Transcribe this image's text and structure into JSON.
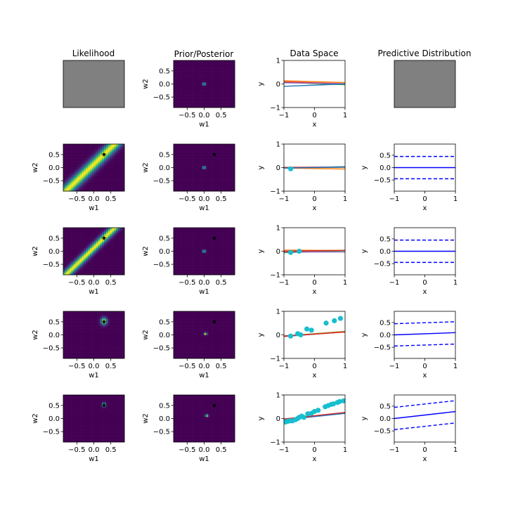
{
  "columns": [
    "Likelihood",
    "Prior/Posterior",
    "Data Space",
    "Predictive Distribution"
  ],
  "colors": {
    "viridis_low": "#440154",
    "viridis_bg": "#481a6c",
    "viridis_high": "#fde725",
    "empty_panel": "#808080",
    "data_point": "#17becf",
    "predictive_line": "#0000ff",
    "true_param_marker": "#000000"
  },
  "axes": {
    "w1_label": "w1",
    "w2_label": "w2",
    "x_label": "x",
    "y_label": "y",
    "weight_ticks": [
      "−0.5",
      "0.0",
      "0.5"
    ],
    "weight_tick_values": [
      -0.5,
      0.0,
      0.5
    ],
    "data_x_ticks": [
      "−1",
      "0",
      "1"
    ],
    "data_x_tick_values": [
      -1,
      0,
      1
    ],
    "data_y_ticks": [
      "−1",
      "0",
      "1"
    ],
    "data_y_tick_values": [
      -1,
      0,
      1
    ],
    "pred_x_ticks": [
      "−1",
      "0",
      "1"
    ],
    "pred_x_tick_values": [
      -1,
      0,
      1
    ],
    "pred_y_ticks": [
      "−0.5",
      "0.0",
      "0.5"
    ],
    "pred_y_tick_values": [
      -0.5,
      0.0,
      0.5
    ]
  },
  "chart_data": {
    "type": "grid",
    "true_params": {
      "w1": 0.3,
      "w2": 0.5
    },
    "weight_range": [
      -0.9,
      0.9
    ],
    "data_xlim": [
      -1,
      1
    ],
    "data_ylim": [
      -1,
      1
    ],
    "pred_xlim": [
      -1,
      1
    ],
    "pred_ylim": [
      -0.95,
      0.95
    ],
    "rows": [
      {
        "n_points": 0,
        "likelihood": null,
        "posterior": {
          "mean": [
            0.0,
            0.0
          ],
          "sd": [
            0.03,
            0.03
          ],
          "rho": 0
        },
        "data_points": [],
        "sample_lines": [
          {
            "color": "#ff7f0e",
            "w1": 0.1,
            "w2": -0.04
          },
          {
            "color": "#2ca02c",
            "w1": 0.02,
            "w2": -0.05
          },
          {
            "color": "#d62728",
            "w1": 0.05,
            "w2": -0.04
          },
          {
            "color": "#9467bd",
            "w1": 0.03,
            "w2": -0.02
          },
          {
            "color": "#1f77b4",
            "w1": -0.05,
            "w2": 0.05
          }
        ],
        "predictive": null
      },
      {
        "n_points": 1,
        "likelihood": {
          "type": "band",
          "a": 0.3,
          "b": 0.5,
          "width": 0.18
        },
        "posterior": {
          "mean": [
            0.0,
            0.0
          ],
          "sd": [
            0.03,
            0.03
          ],
          "rho": 0
        },
        "data_points": [
          [
            -0.78,
            -0.05
          ]
        ],
        "sample_lines": [
          {
            "color": "#ff7f0e",
            "w1": -0.04,
            "w2": -0.02
          },
          {
            "color": "#2ca02c",
            "w1": 0.0,
            "w2": 0.01
          },
          {
            "color": "#d62728",
            "w1": 0.02,
            "w2": 0.01
          },
          {
            "color": "#9467bd",
            "w1": 0.0,
            "w2": 0.02
          },
          {
            "color": "#1f77b4",
            "w1": 0.01,
            "w2": 0.03
          }
        ],
        "predictive": {
          "mean": [
            0.0,
            0.0
          ],
          "upper": [
            0.45,
            0.45
          ],
          "lower": [
            -0.45,
            -0.45
          ]
        }
      },
      {
        "n_points": 2,
        "likelihood": {
          "type": "band",
          "a": 0.3,
          "b": 0.5,
          "width": 0.13
        },
        "posterior": {
          "mean": [
            0.0,
            0.0
          ],
          "sd": [
            0.03,
            0.03
          ],
          "rho": 0
        },
        "data_points": [
          [
            -0.78,
            -0.05
          ],
          [
            -0.5,
            0.0
          ]
        ],
        "sample_lines": [
          {
            "color": "#1f77b4",
            "w1": 0.0,
            "w2": 0.03
          },
          {
            "color": "#ff7f0e",
            "w1": 0.04,
            "w2": -0.01
          },
          {
            "color": "#2ca02c",
            "w1": -0.02,
            "w2": 0.04
          },
          {
            "color": "#9467bd",
            "w1": -0.03,
            "w2": 0.0
          },
          {
            "color": "#d62728",
            "w1": 0.02,
            "w2": 0.02
          }
        ],
        "predictive": {
          "mean": [
            0.0,
            0.0
          ],
          "upper": [
            0.45,
            0.45
          ],
          "lower": [
            -0.45,
            -0.45
          ]
        }
      },
      {
        "n_points": 8,
        "likelihood": {
          "type": "blob",
          "mean": [
            0.3,
            0.52
          ],
          "sd": [
            0.06,
            0.09
          ],
          "rho": 0
        },
        "posterior": {
          "mean": [
            0.04,
            0.04
          ],
          "sd": [
            0.03,
            0.03
          ],
          "rho": 0
        },
        "data_points": [
          [
            -0.78,
            -0.05
          ],
          [
            -0.55,
            0.05
          ],
          [
            -0.45,
            0.0
          ],
          [
            -0.25,
            0.25
          ],
          [
            -0.1,
            0.2
          ],
          [
            0.38,
            0.5
          ],
          [
            0.65,
            0.6
          ],
          [
            0.85,
            0.7
          ]
        ],
        "sample_lines": [
          {
            "color": "#1f77b4",
            "w1": 0.03,
            "w2": 0.1
          },
          {
            "color": "#9467bd",
            "w1": 0.04,
            "w2": 0.08
          },
          {
            "color": "#2ca02c",
            "w1": 0.05,
            "w2": 0.1
          },
          {
            "color": "#ff7f0e",
            "w1": 0.04,
            "w2": 0.1
          },
          {
            "color": "#d62728",
            "w1": 0.03,
            "w2": 0.09
          }
        ],
        "predictive": {
          "mean": [
            0.0,
            0.09
          ],
          "upper": [
            0.45,
            0.53
          ],
          "lower": [
            -0.45,
            -0.37
          ]
        }
      },
      {
        "n_points": 20,
        "likelihood": {
          "type": "blob",
          "mean": [
            0.3,
            0.52
          ],
          "sd": [
            0.035,
            0.05
          ],
          "rho": 0
        },
        "posterior": {
          "mean": [
            0.08,
            0.11
          ],
          "sd": [
            0.03,
            0.03
          ],
          "rho": 0
        },
        "data_points": [
          [
            -0.95,
            -0.15
          ],
          [
            -0.88,
            -0.12
          ],
          [
            -0.8,
            -0.1
          ],
          [
            -0.72,
            -0.1
          ],
          [
            -0.62,
            -0.05
          ],
          [
            -0.55,
            0.0
          ],
          [
            -0.5,
            0.05
          ],
          [
            -0.42,
            0.1
          ],
          [
            -0.35,
            0.05
          ],
          [
            -0.22,
            0.2
          ],
          [
            -0.1,
            0.22
          ],
          [
            0.0,
            0.3
          ],
          [
            0.12,
            0.35
          ],
          [
            0.35,
            0.5
          ],
          [
            0.45,
            0.55
          ],
          [
            0.55,
            0.6
          ],
          [
            0.62,
            0.62
          ],
          [
            0.75,
            0.68
          ],
          [
            0.82,
            0.72
          ],
          [
            0.95,
            0.75
          ]
        ],
        "sample_lines": [
          {
            "color": "#2ca02c",
            "w1": 0.1,
            "w2": 0.12
          },
          {
            "color": "#ff7f0e",
            "w1": 0.1,
            "w2": 0.15
          },
          {
            "color": "#9467bd",
            "w1": 0.08,
            "w2": 0.14
          },
          {
            "color": "#1f77b4",
            "w1": 0.09,
            "w2": 0.13
          },
          {
            "color": "#d62728",
            "w1": 0.12,
            "w2": 0.14
          }
        ],
        "predictive": {
          "mean": [
            0.0,
            0.28
          ],
          "upper": [
            0.45,
            0.72
          ],
          "lower": [
            -0.45,
            -0.18
          ]
        }
      }
    ]
  }
}
